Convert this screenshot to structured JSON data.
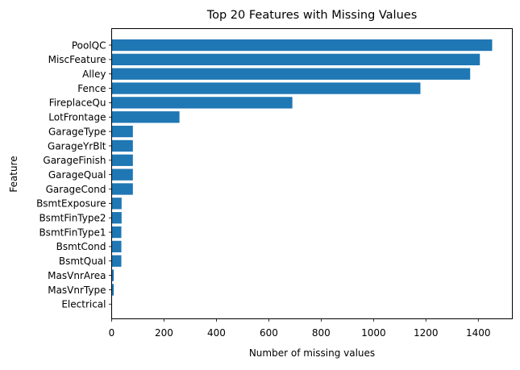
{
  "chart_data": {
    "type": "bar",
    "orientation": "horizontal",
    "title": "Top 20 Features with Missing Values",
    "xlabel": "Number of missing values",
    "ylabel": "Feature",
    "xlim": [
      0,
      1530
    ],
    "xticks": [
      0,
      200,
      400,
      600,
      800,
      1000,
      1200,
      1400
    ],
    "grid": false,
    "bar_color": "#1f77b4",
    "categories": [
      "PoolQC",
      "MiscFeature",
      "Alley",
      "Fence",
      "FireplaceQu",
      "LotFrontage",
      "GarageType",
      "GarageYrBlt",
      "GarageFinish",
      "GarageQual",
      "GarageCond",
      "BsmtExposure",
      "BsmtFinType2",
      "BsmtFinType1",
      "BsmtCond",
      "BsmtQual",
      "MasVnrArea",
      "MasVnrType",
      "Electrical"
    ],
    "values": [
      1453,
      1406,
      1369,
      1179,
      690,
      259,
      81,
      81,
      81,
      81,
      81,
      38,
      38,
      37,
      37,
      37,
      8,
      8,
      1
    ]
  }
}
